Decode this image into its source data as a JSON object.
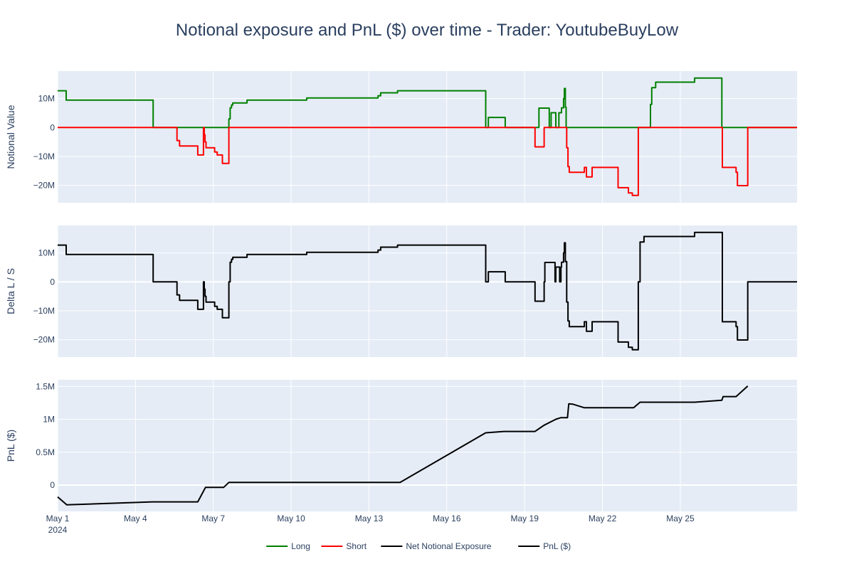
{
  "chart_data": {
    "type": "line",
    "title": "Notional exposure and PnL ($) over time - Trader: YoutubeBuyLow",
    "x_start": "2024-05-01",
    "x_range": [
      0,
      28.5
    ],
    "x_ticks": [
      {
        "value": 0,
        "label": "May 1",
        "sublabel": "2024"
      },
      {
        "value": 3,
        "label": "May 4"
      },
      {
        "value": 6,
        "label": "May 7"
      },
      {
        "value": 9,
        "label": "May 10"
      },
      {
        "value": 12,
        "label": "May 13"
      },
      {
        "value": 15,
        "label": "May 16"
      },
      {
        "value": 18,
        "label": "May 19"
      },
      {
        "value": 21,
        "label": "May 22"
      },
      {
        "value": 24,
        "label": "May 25"
      }
    ],
    "legend": {
      "position": "bottom-center",
      "entries": [
        {
          "name": "Long",
          "color": "#008000"
        },
        {
          "name": "Short",
          "color": "#ff0000"
        },
        {
          "name": "Net Notional Exposure",
          "color": "#000000"
        },
        {
          "name": "PnL ($)",
          "color": "#000000"
        }
      ]
    },
    "panels": [
      {
        "ylabel": "Notional Value",
        "ylim": [
          -26000000,
          19500000
        ],
        "y_ticks": [
          {
            "value": 10000000,
            "label": "10M"
          },
          {
            "value": 0,
            "label": "0"
          },
          {
            "value": -10000000,
            "label": "−10M"
          },
          {
            "value": -20000000,
            "label": "−20M"
          }
        ],
        "series": [
          {
            "name": "Long",
            "color": "#008000",
            "shape": "hv",
            "points": [
              [
                0,
                12700000
              ],
              [
                0.33,
                9500000
              ],
              [
                3.65,
                9500000
              ],
              [
                3.68,
                0
              ],
              [
                6.55,
                0
              ],
              [
                6.6,
                3000000
              ],
              [
                6.65,
                6800000
              ],
              [
                6.7,
                7800000
              ],
              [
                6.75,
                8500000
              ],
              [
                7.3,
                8500000
              ],
              [
                7.3,
                9500000
              ],
              [
                9.6,
                9500000
              ],
              [
                9.6,
                10200000
              ],
              [
                12.3,
                10200000
              ],
              [
                12.35,
                11000000
              ],
              [
                12.45,
                12000000
              ],
              [
                13.1,
                12000000
              ],
              [
                13.1,
                12700000
              ],
              [
                16.5,
                12700000
              ],
              [
                16.5,
                0
              ],
              [
                16.6,
                3500000
              ],
              [
                17.25,
                3500000
              ],
              [
                17.25,
                0
              ],
              [
                18.55,
                0
              ],
              [
                18.55,
                6700000
              ],
              [
                18.95,
                6700000
              ],
              [
                18.95,
                0
              ],
              [
                19.02,
                5100000
              ],
              [
                19.2,
                5100000
              ],
              [
                19.2,
                0
              ],
              [
                19.32,
                5100000
              ],
              [
                19.42,
                5100000
              ],
              [
                19.42,
                6800000
              ],
              [
                19.5,
                10000000
              ],
              [
                19.53,
                13500000
              ],
              [
                19.57,
                7000000
              ],
              [
                19.6,
                0
              ],
              [
                22.8,
                0
              ],
              [
                22.85,
                8000000
              ],
              [
                22.9,
                13800000
              ],
              [
                23.05,
                13800000
              ],
              [
                23.05,
                15700000
              ],
              [
                24.55,
                15700000
              ],
              [
                24.55,
                17100000
              ],
              [
                25.6,
                17100000
              ],
              [
                25.6,
                0
              ],
              [
                28.5,
                0
              ]
            ]
          },
          {
            "name": "Short",
            "color": "#ff0000",
            "shape": "hv",
            "points": [
              [
                0,
                0
              ],
              [
                4.55,
                0
              ],
              [
                4.6,
                -4500000
              ],
              [
                4.7,
                -6400000
              ],
              [
                5.4,
                -6400000
              ],
              [
                5.4,
                -9500000
              ],
              [
                5.6,
                -9500000
              ],
              [
                5.62,
                0
              ],
              [
                5.65,
                -2500000
              ],
              [
                5.68,
                -5000000
              ],
              [
                5.72,
                -7000000
              ],
              [
                6.05,
                -7000000
              ],
              [
                6.05,
                -8500000
              ],
              [
                6.15,
                -8500000
              ],
              [
                6.15,
                -9500000
              ],
              [
                6.3,
                -9500000
              ],
              [
                6.35,
                -12400000
              ],
              [
                6.55,
                -12400000
              ],
              [
                6.6,
                0
              ],
              [
                18.4,
                0
              ],
              [
                18.4,
                -6700000
              ],
              [
                18.75,
                -6700000
              ],
              [
                18.75,
                0
              ],
              [
                19.6,
                0
              ],
              [
                19.62,
                -7000000
              ],
              [
                19.67,
                -13500000
              ],
              [
                19.72,
                -15500000
              ],
              [
                20.3,
                -15500000
              ],
              [
                20.3,
                -13800000
              ],
              [
                20.38,
                -13800000
              ],
              [
                20.38,
                -17100000
              ],
              [
                20.6,
                -17100000
              ],
              [
                20.6,
                -13800000
              ],
              [
                21.6,
                -13800000
              ],
              [
                21.6,
                -20800000
              ],
              [
                22.0,
                -20800000
              ],
              [
                22.0,
                -22600000
              ],
              [
                22.15,
                -22600000
              ],
              [
                22.15,
                -23500000
              ],
              [
                22.35,
                -23500000
              ],
              [
                22.38,
                0
              ],
              [
                25.6,
                0
              ],
              [
                25.62,
                -13800000
              ],
              [
                26.1,
                -13800000
              ],
              [
                26.15,
                -15500000
              ],
              [
                26.2,
                -20100000
              ],
              [
                26.6,
                -20100000
              ],
              [
                26.6,
                0
              ],
              [
                28.5,
                0
              ]
            ]
          }
        ]
      },
      {
        "ylabel": "Delta L / S",
        "ylim": [
          -26000000,
          19500000
        ],
        "y_ticks": [
          {
            "value": 10000000,
            "label": "10M"
          },
          {
            "value": 0,
            "label": "0"
          },
          {
            "value": -10000000,
            "label": "−10M"
          },
          {
            "value": -20000000,
            "label": "−20M"
          }
        ],
        "series": [
          {
            "name": "Net Notional Exposure",
            "color": "#000000",
            "shape": "hv",
            "points": [
              [
                0,
                12700000
              ],
              [
                0.33,
                9500000
              ],
              [
                3.65,
                9500000
              ],
              [
                3.68,
                0
              ],
              [
                4.55,
                0
              ],
              [
                4.6,
                -4500000
              ],
              [
                4.7,
                -6400000
              ],
              [
                5.4,
                -6400000
              ],
              [
                5.4,
                -9500000
              ],
              [
                5.6,
                -9500000
              ],
              [
                5.62,
                0
              ],
              [
                5.65,
                -2500000
              ],
              [
                5.68,
                -5000000
              ],
              [
                5.72,
                -7000000
              ],
              [
                6.05,
                -7000000
              ],
              [
                6.05,
                -8500000
              ],
              [
                6.15,
                -8500000
              ],
              [
                6.15,
                -9500000
              ],
              [
                6.3,
                -9500000
              ],
              [
                6.35,
                -12400000
              ],
              [
                6.55,
                -12400000
              ],
              [
                6.6,
                0
              ],
              [
                6.65,
                6800000
              ],
              [
                6.7,
                7800000
              ],
              [
                6.75,
                8500000
              ],
              [
                7.3,
                8500000
              ],
              [
                7.3,
                9500000
              ],
              [
                9.6,
                9500000
              ],
              [
                9.6,
                10200000
              ],
              [
                12.3,
                10200000
              ],
              [
                12.35,
                11000000
              ],
              [
                12.45,
                12000000
              ],
              [
                13.1,
                12000000
              ],
              [
                13.1,
                12700000
              ],
              [
                16.5,
                12700000
              ],
              [
                16.5,
                0
              ],
              [
                16.6,
                3500000
              ],
              [
                17.25,
                3500000
              ],
              [
                17.25,
                0
              ],
              [
                18.4,
                0
              ],
              [
                18.4,
                -6700000
              ],
              [
                18.75,
                -6700000
              ],
              [
                18.75,
                0
              ],
              [
                18.78,
                6700000
              ],
              [
                19.15,
                6700000
              ],
              [
                19.17,
                0
              ],
              [
                19.2,
                5100000
              ],
              [
                19.32,
                5100000
              ],
              [
                19.35,
                0
              ],
              [
                19.4,
                5100000
              ],
              [
                19.42,
                6800000
              ],
              [
                19.5,
                10000000
              ],
              [
                19.53,
                13500000
              ],
              [
                19.57,
                7000000
              ],
              [
                19.62,
                -7000000
              ],
              [
                19.67,
                -13500000
              ],
              [
                19.72,
                -15500000
              ],
              [
                20.3,
                -15500000
              ],
              [
                20.3,
                -13800000
              ],
              [
                20.38,
                -13800000
              ],
              [
                20.38,
                -17100000
              ],
              [
                20.6,
                -17100000
              ],
              [
                20.6,
                -13800000
              ],
              [
                21.6,
                -13800000
              ],
              [
                21.6,
                -20800000
              ],
              [
                22.0,
                -20800000
              ],
              [
                22.0,
                -22600000
              ],
              [
                22.15,
                -22600000
              ],
              [
                22.15,
                -23500000
              ],
              [
                22.35,
                -23500000
              ],
              [
                22.38,
                0
              ],
              [
                22.45,
                13800000
              ],
              [
                22.6,
                13800000
              ],
              [
                22.6,
                15700000
              ],
              [
                24.55,
                15700000
              ],
              [
                24.55,
                17100000
              ],
              [
                25.6,
                17100000
              ],
              [
                25.62,
                -13800000
              ],
              [
                26.1,
                -13800000
              ],
              [
                26.15,
                -15500000
              ],
              [
                26.2,
                -20100000
              ],
              [
                26.6,
                -20100000
              ],
              [
                26.6,
                0
              ],
              [
                28.5,
                0
              ]
            ]
          }
        ]
      },
      {
        "ylabel": "PnL ($)",
        "ylim": [
          -400000,
          1600000
        ],
        "y_ticks": [
          {
            "value": 1500000,
            "label": "1.5M"
          },
          {
            "value": 1000000,
            "label": "1M"
          },
          {
            "value": 500000,
            "label": "0.5M"
          },
          {
            "value": 0,
            "label": "0"
          }
        ],
        "series": [
          {
            "name": "PnL ($)",
            "color": "#000000",
            "shape": "linear",
            "points": [
              [
                0,
                -180000
              ],
              [
                0.35,
                -300000
              ],
              [
                3.65,
                -255000
              ],
              [
                5.4,
                -255000
              ],
              [
                5.7,
                -35000
              ],
              [
                6.4,
                -35000
              ],
              [
                6.6,
                40000
              ],
              [
                13.2,
                40000
              ],
              [
                16.5,
                795000
              ],
              [
                17.2,
                815000
              ],
              [
                18.4,
                815000
              ],
              [
                18.75,
                910000
              ],
              [
                19.2,
                1000000
              ],
              [
                19.4,
                1025000
              ],
              [
                19.65,
                1025000
              ],
              [
                19.7,
                1235000
              ],
              [
                19.85,
                1230000
              ],
              [
                20.3,
                1175000
              ],
              [
                22.2,
                1175000
              ],
              [
                22.45,
                1260000
              ],
              [
                24.55,
                1260000
              ],
              [
                25.6,
                1290000
              ],
              [
                25.65,
                1345000
              ],
              [
                26.15,
                1345000
              ],
              [
                26.6,
                1505000
              ]
            ]
          }
        ]
      }
    ]
  }
}
